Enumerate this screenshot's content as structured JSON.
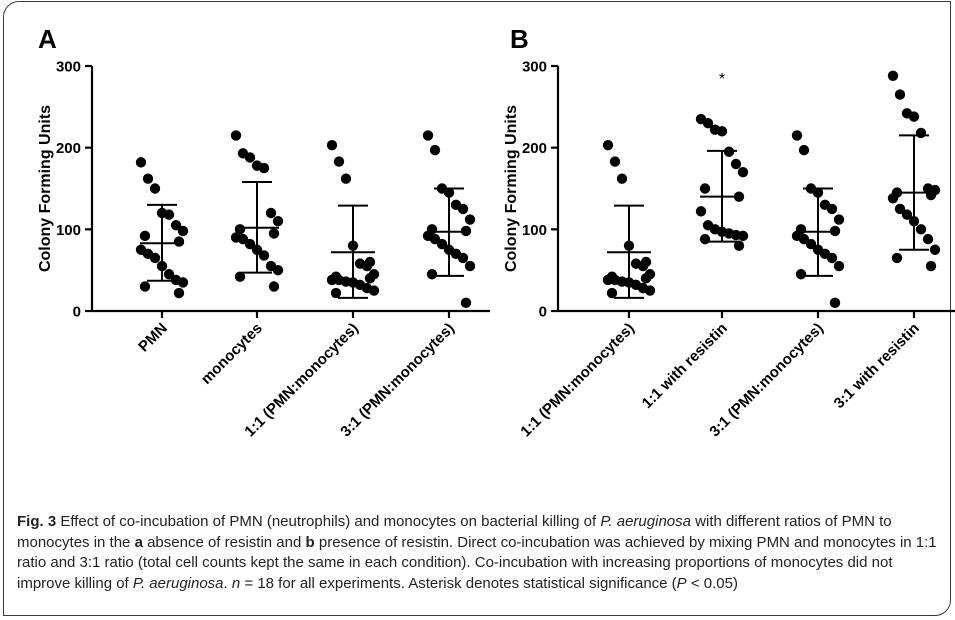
{
  "chart_data": [
    {
      "type": "scatter",
      "panel": "A",
      "ylabel": "Colony Forming Units",
      "ylim": [
        0,
        300
      ],
      "yticks": [
        0,
        100,
        200,
        300
      ],
      "categories": [
        "PMN",
        "monocytes",
        "1:1 (PMN:monocytes)",
        "3:1 (PMN:monocytes)"
      ],
      "groups": [
        {
          "points": [
            182,
            162,
            150,
            120,
            118,
            105,
            98,
            92,
            85,
            75,
            70,
            65,
            55,
            45,
            38,
            35,
            30,
            22
          ],
          "mean": 83,
          "err_low": 37,
          "err_high": 130
        },
        {
          "points": [
            215,
            193,
            188,
            178,
            175,
            120,
            110,
            100,
            95,
            90,
            88,
            82,
            75,
            68,
            55,
            50,
            42,
            30
          ],
          "mean": 102,
          "err_low": 47,
          "err_high": 158
        },
        {
          "points": [
            203,
            183,
            162,
            80,
            58,
            55,
            45,
            42,
            40,
            38,
            38,
            36,
            35,
            32,
            28,
            25,
            22,
            60
          ],
          "mean": 72,
          "err_low": 16,
          "err_high": 129
        },
        {
          "points": [
            215,
            197,
            150,
            145,
            130,
            125,
            112,
            100,
            98,
            92,
            88,
            82,
            75,
            70,
            65,
            55,
            45,
            10
          ],
          "mean": 97,
          "err_low": 43,
          "err_high": 150
        }
      ],
      "significance": []
    },
    {
      "type": "scatter",
      "panel": "B",
      "ylabel": "Colony Forming Units",
      "ylim": [
        0,
        300
      ],
      "yticks": [
        0,
        100,
        200,
        300
      ],
      "categories": [
        "1:1 (PMN:monocytes)",
        "1:1 with resistin",
        "3:1 (PMN:monocytes)",
        "3:1 with resistin"
      ],
      "groups": [
        {
          "points": [
            203,
            183,
            162,
            80,
            58,
            55,
            45,
            42,
            40,
            38,
            38,
            36,
            35,
            32,
            28,
            25,
            22,
            60
          ],
          "mean": 72,
          "err_low": 16,
          "err_high": 129
        },
        {
          "points": [
            235,
            230,
            222,
            220,
            195,
            180,
            170,
            150,
            140,
            122,
            105,
            100,
            97,
            95,
            93,
            92,
            88,
            80
          ],
          "mean": 140,
          "err_low": 85,
          "err_high": 196
        },
        {
          "points": [
            215,
            197,
            150,
            145,
            130,
            125,
            112,
            100,
            98,
            92,
            88,
            82,
            75,
            70,
            65,
            55,
            45,
            10
          ],
          "mean": 97,
          "err_low": 43,
          "err_high": 150
        },
        {
          "points": [
            288,
            265,
            242,
            238,
            218,
            150,
            148,
            145,
            142,
            138,
            125,
            118,
            110,
            100,
            88,
            75,
            65,
            55
          ],
          "mean": 145,
          "err_low": 75,
          "err_high": 215
        }
      ],
      "significance": [
        {
          "group": 1,
          "label": "*"
        }
      ]
    }
  ],
  "caption": {
    "fig_label": "Fig. 3",
    "p1": " Effect of co-incubation of PMN (neutrophils) and monocytes on bacterial killing of ",
    "organism1": "P. aeruginosa",
    "p2": " with different ratios of PMN to monocytes in the ",
    "a": "a",
    "p3": " absence of resistin and ",
    "b": "b",
    "p4": " presence of resistin. Direct co-incubation was achieved by mixing PMN and monocytes in 1:1 ratio and 3:1 ratio (total cell counts kept the same in each condition). Co-incubation with increasing proportions of monocytes did not improve killing of ",
    "organism2": "P. aeruginosa",
    "p5": ". ",
    "n_var": "n",
    "p6": " = 18 for all experiments. Asterisk denotes statistical significance (",
    "p_var": "P",
    "p7": " < 0.05)"
  }
}
